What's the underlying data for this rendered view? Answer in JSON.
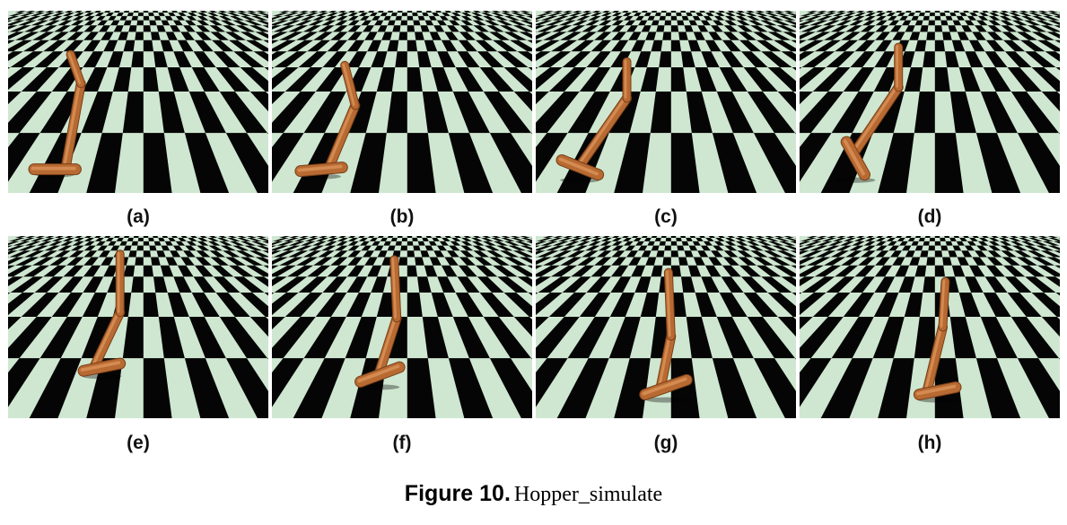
{
  "figure": {
    "label": "Figure 10.",
    "title": "Hopper_simulate"
  },
  "panels": [
    {
      "label": "(a)",
      "pose": [
        [
          0.1,
          0.87
        ],
        [
          0.26,
          0.87
        ],
        [
          0.22,
          0.87
        ],
        [
          0.28,
          0.4
        ],
        [
          0.24,
          0.24
        ]
      ]
    },
    {
      "label": "(b)",
      "pose": [
        [
          0.11,
          0.88
        ],
        [
          0.27,
          0.86
        ],
        [
          0.22,
          0.86
        ],
        [
          0.32,
          0.52
        ],
        [
          0.28,
          0.3
        ]
      ]
    },
    {
      "label": "(c)",
      "pose": [
        [
          0.1,
          0.82
        ],
        [
          0.24,
          0.9
        ],
        [
          0.17,
          0.85
        ],
        [
          0.35,
          0.48
        ],
        [
          0.35,
          0.28
        ]
      ]
    },
    {
      "label": "(d)",
      "pose": [
        [
          0.18,
          0.72
        ],
        [
          0.25,
          0.9
        ],
        [
          0.21,
          0.78
        ],
        [
          0.38,
          0.42
        ],
        [
          0.38,
          0.2
        ]
      ]
    },
    {
      "label": "(e)",
      "pose": [
        [
          0.29,
          0.74
        ],
        [
          0.43,
          0.7
        ],
        [
          0.33,
          0.72
        ],
        [
          0.43,
          0.42
        ],
        [
          0.43,
          0.1
        ]
      ]
    },
    {
      "label": "(f)",
      "pose": [
        [
          0.34,
          0.8
        ],
        [
          0.49,
          0.72
        ],
        [
          0.41,
          0.76
        ],
        [
          0.48,
          0.45
        ],
        [
          0.47,
          0.13
        ]
      ]
    },
    {
      "label": "(g)",
      "pose": [
        [
          0.42,
          0.87
        ],
        [
          0.58,
          0.79
        ],
        [
          0.48,
          0.83
        ],
        [
          0.52,
          0.55
        ],
        [
          0.51,
          0.2
        ]
      ]
    },
    {
      "label": "(h)",
      "pose": [
        [
          0.46,
          0.87
        ],
        [
          0.6,
          0.83
        ],
        [
          0.49,
          0.85
        ],
        [
          0.55,
          0.5
        ],
        [
          0.56,
          0.25
        ]
      ]
    }
  ],
  "colors": {
    "checker_dark": "#050505",
    "checker_light": "#cfe7d1",
    "body": "#b86a33",
    "body_dark": "#7a3f17",
    "body_light": "#e09a5e"
  }
}
